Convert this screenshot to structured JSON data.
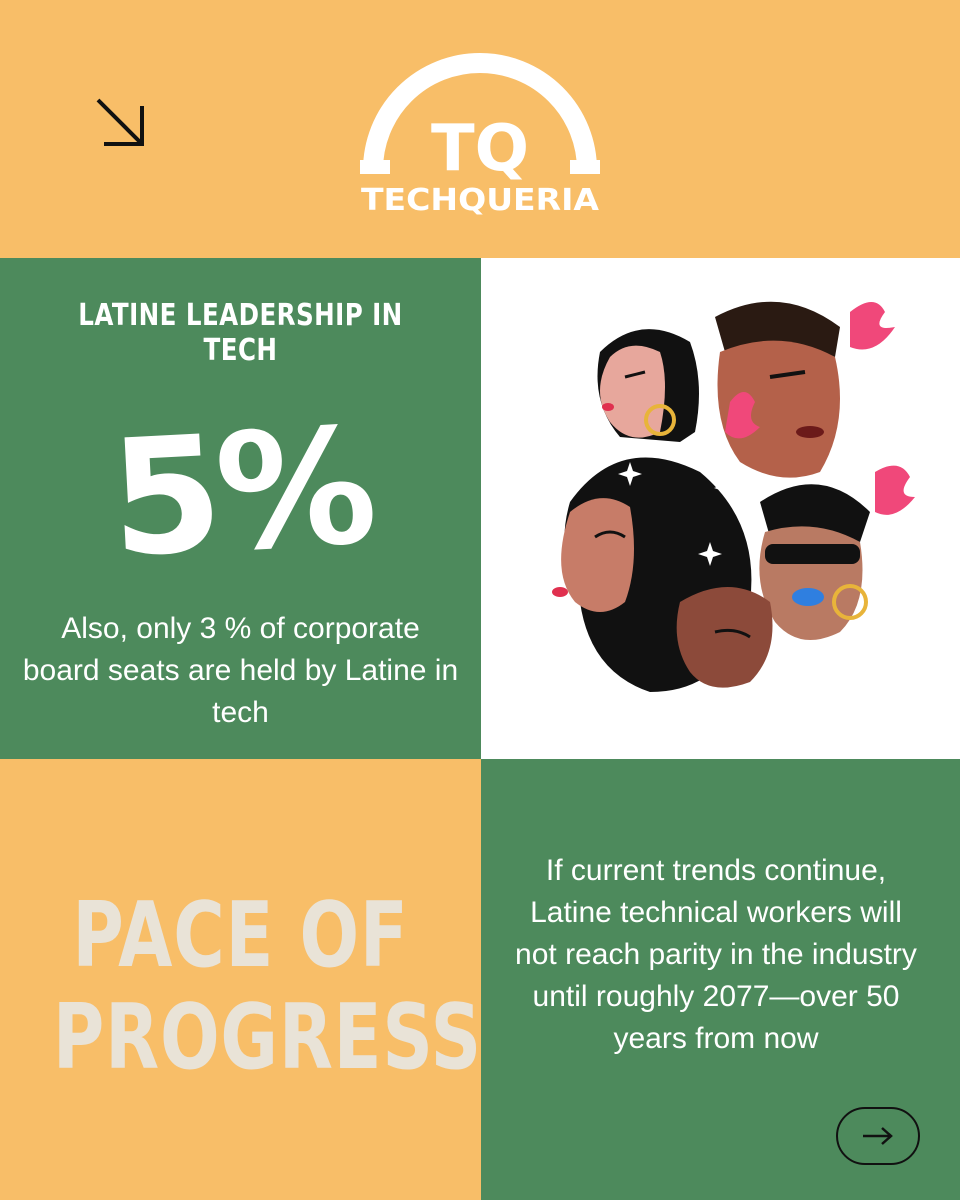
{
  "header": {
    "logo_monogram": "TQ",
    "logo_wordmark": "TECHQUERIA",
    "icons": {
      "corner_arrow": "arrow-down-right-icon"
    }
  },
  "leadership": {
    "heading": "LATINE LEADERSHIP IN TECH",
    "stat": "5%",
    "caption": "Also, only 3 % of corporate board seats are held by Latine in tech"
  },
  "progress": {
    "line1": "PACE OF",
    "line2": "PROGRESS"
  },
  "trend": {
    "text": "If current trends continue, Latine technical workers will not reach parity in the industry until roughly 2077—over 50 years from now"
  },
  "navigation": {
    "next_icon": "arrow-right-icon"
  },
  "colors": {
    "orange": "#F8BE68",
    "green": "#4D8A5C",
    "white": "#FFFFFF",
    "cream_text": "#E9E3D7",
    "flame_pink": "#F0487A"
  }
}
